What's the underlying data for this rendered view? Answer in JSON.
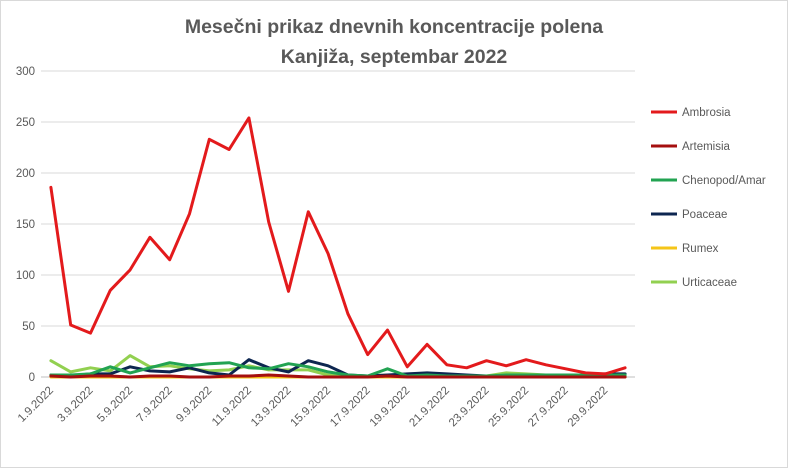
{
  "chart_data": {
    "type": "line",
    "title_line1": "Mesečni prikaz dnevnih koncentracije polena",
    "title_line2": "Kanjiža, septembar 2022",
    "xlabel": "",
    "ylabel": "",
    "ylim": [
      0,
      300
    ],
    "yticks": [
      "0",
      "50",
      "100",
      "150",
      "200",
      "250",
      "300"
    ],
    "xtick_labels": [
      "1.9.2022",
      "3.9.2022",
      "5.9.2022",
      "7.9.2022",
      "9.9.2022",
      "11.9.2022",
      "13.9.2022",
      "15.9.2022",
      "17.9.2022",
      "19.9.2022",
      "21.9.2022",
      "23.9.2022",
      "25.9.2022",
      "27.9.2022",
      "29.9.2022"
    ],
    "grid": true,
    "legend_position": "right",
    "categories": [
      "1.9.2022",
      "2.9.2022",
      "3.9.2022",
      "4.9.2022",
      "5.9.2022",
      "6.9.2022",
      "7.9.2022",
      "8.9.2022",
      "9.9.2022",
      "10.9.2022",
      "11.9.2022",
      "12.9.2022",
      "13.9.2022",
      "14.9.2022",
      "15.9.2022",
      "16.9.2022",
      "17.9.2022",
      "18.9.2022",
      "19.9.2022",
      "20.9.2022",
      "21.9.2022",
      "22.9.2022",
      "23.9.2022",
      "24.9.2022",
      "25.9.2022",
      "26.9.2022",
      "27.9.2022",
      "28.9.2022",
      "29.9.2022",
      "30.9.2022"
    ],
    "series": [
      {
        "name": "Ambrosia",
        "color": "#e31a1c",
        "values": [
          186,
          51,
          43,
          85,
          105,
          137,
          115,
          160,
          233,
          223,
          254,
          152,
          84,
          162,
          121,
          62,
          22,
          46,
          10,
          32,
          12,
          9,
          16,
          11,
          17,
          12,
          8,
          4,
          3,
          9
        ]
      },
      {
        "name": "Artemisia",
        "color": "#a50f0f",
        "values": [
          1,
          0,
          1,
          1,
          0,
          1,
          1,
          0,
          0,
          1,
          1,
          2,
          1,
          0,
          0,
          0,
          0,
          1,
          0,
          0,
          0,
          0,
          0,
          0,
          0,
          0,
          0,
          0,
          0,
          0
        ]
      },
      {
        "name": "Chenopod/Amar",
        "color": "#22a352",
        "values": [
          2,
          2,
          3,
          10,
          4,
          9,
          14,
          11,
          13,
          14,
          9,
          8,
          13,
          10,
          5,
          2,
          1,
          8,
          1,
          2,
          1,
          1,
          1,
          2,
          2,
          2,
          2,
          2,
          2,
          2
        ]
      },
      {
        "name": "Poaceae",
        "color": "#0d2650",
        "values": [
          2,
          1,
          3,
          3,
          10,
          6,
          5,
          9,
          4,
          2,
          17,
          9,
          5,
          16,
          11,
          2,
          1,
          2,
          3,
          4,
          3,
          2,
          1,
          1,
          1,
          1,
          2,
          2,
          3,
          3
        ]
      },
      {
        "name": "Rumex",
        "color": "#f5c518",
        "values": [
          0,
          0,
          0,
          0,
          0,
          0,
          0,
          0,
          0,
          0,
          0,
          0,
          0,
          0,
          0,
          0,
          0,
          0,
          0,
          0,
          0,
          0,
          0,
          0,
          0,
          0,
          0,
          0,
          0,
          0
        ]
      },
      {
        "name": "Urticaceae",
        "color": "#92d050",
        "values": [
          16,
          5,
          9,
          6,
          21,
          10,
          11,
          8,
          6,
          7,
          11,
          7,
          7,
          7,
          2,
          1,
          1,
          2,
          1,
          2,
          1,
          1,
          1,
          4,
          3,
          2,
          2,
          1,
          1,
          1
        ]
      }
    ]
  }
}
